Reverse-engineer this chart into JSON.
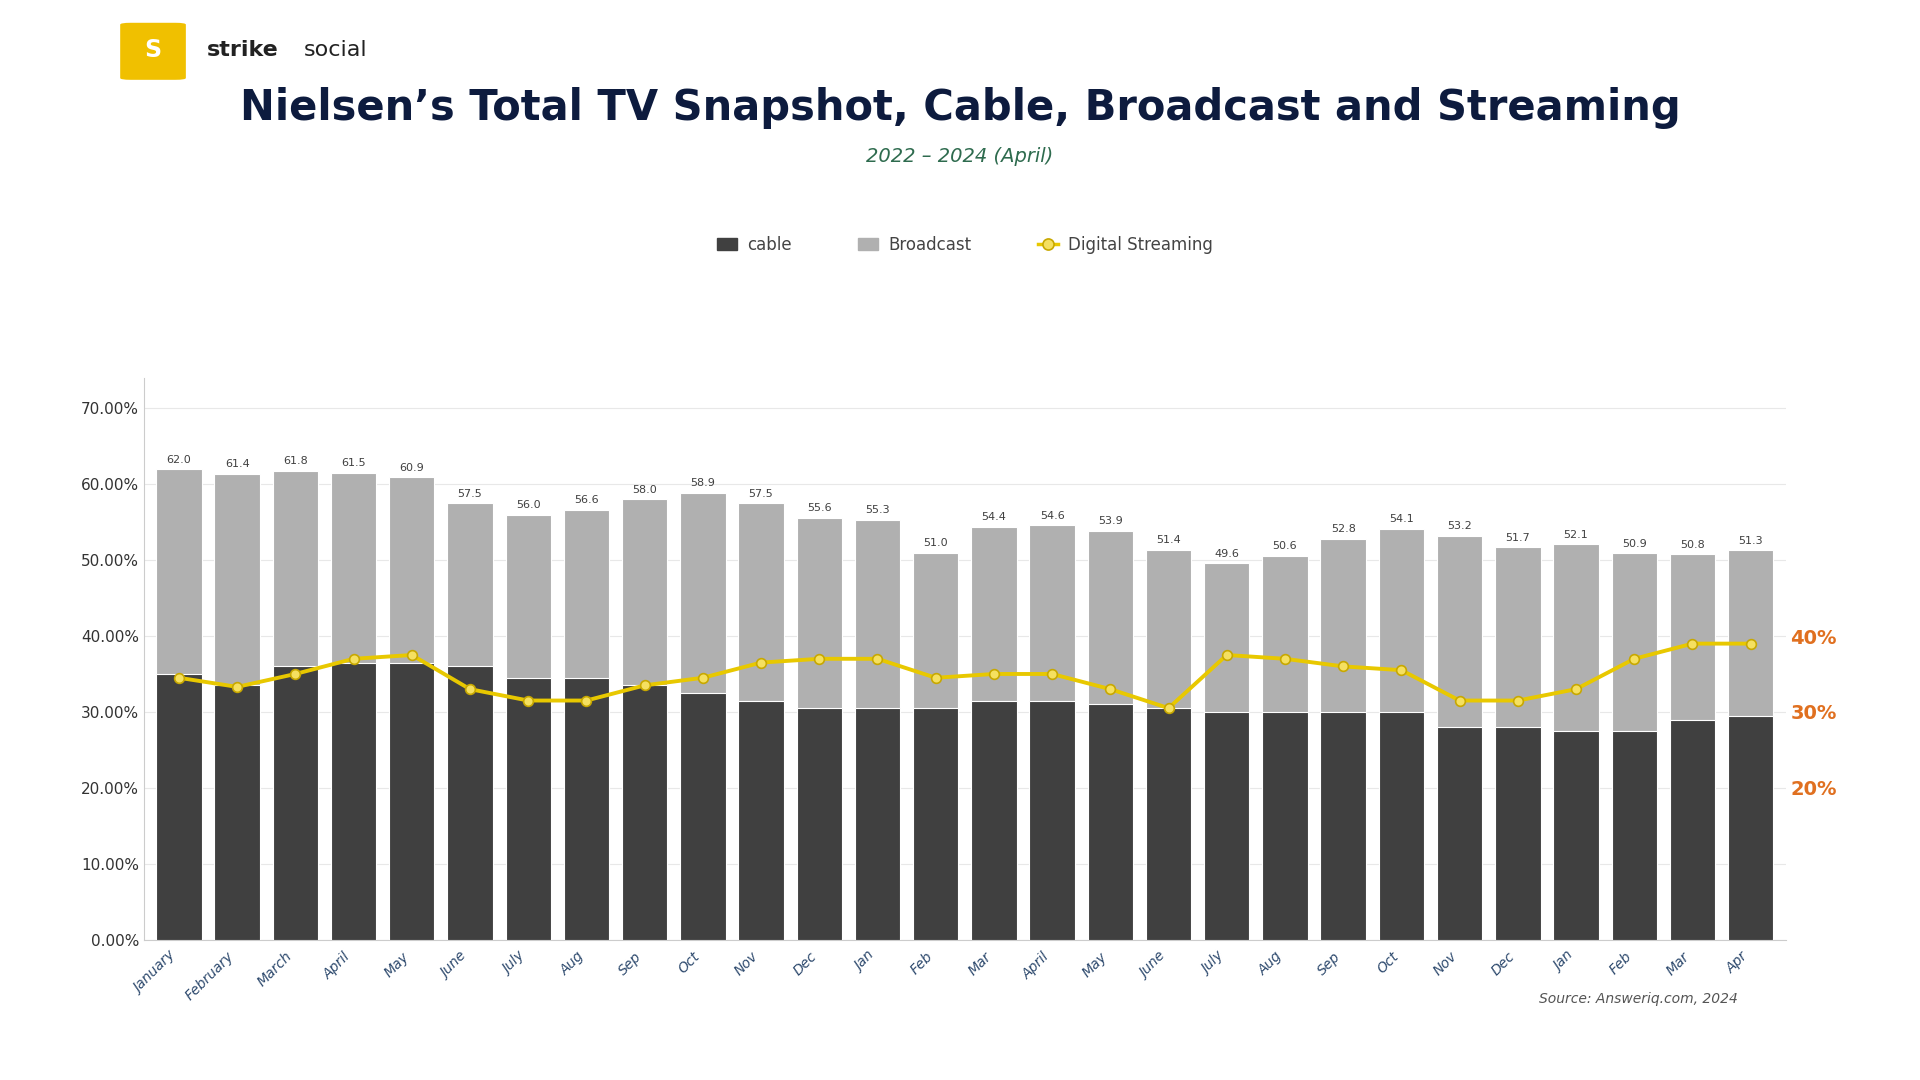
{
  "title": "Nielsen’s Total TV Snapshot, Cable, Broadcast and Streaming",
  "subtitle": "2022 – 2024 (April)",
  "source": "Source: Answeriq.com, 2024",
  "categories": [
    "January",
    "February",
    "March",
    "April",
    "May",
    "June",
    "July",
    "Aug",
    "Sep",
    "Oct",
    "Nov",
    "Dec",
    "Jan",
    "Feb",
    "Mar",
    "April",
    "May",
    "June",
    "July",
    "Aug",
    "Sep",
    "Oct",
    "Nov",
    "Dec",
    "Jan",
    "Feb",
    "Mar",
    "Apr"
  ],
  "cable_values": [
    35.0,
    33.5,
    36.0,
    36.5,
    36.5,
    36.0,
    34.5,
    34.5,
    33.5,
    32.5,
    31.5,
    30.5,
    30.5,
    30.5,
    31.5,
    31.5,
    31.0,
    30.5,
    30.0,
    30.0,
    30.0,
    30.0,
    28.0,
    28.0,
    27.5,
    27.5,
    29.0,
    29.5
  ],
  "broadcast_values": [
    62.0,
    61.4,
    61.8,
    61.5,
    60.9,
    57.5,
    56.0,
    56.6,
    58.0,
    58.9,
    57.5,
    55.6,
    55.3,
    51.0,
    54.4,
    54.6,
    53.9,
    51.4,
    49.6,
    50.6,
    52.8,
    54.1,
    53.2,
    51.7,
    52.1,
    50.9,
    50.8,
    51.3
  ],
  "streaming_values": [
    34.5,
    33.3,
    35.0,
    37.0,
    37.5,
    33.0,
    31.5,
    31.5,
    33.5,
    34.5,
    36.5,
    37.0,
    37.0,
    34.5,
    35.0,
    35.0,
    33.0,
    30.5,
    37.5,
    37.0,
    36.0,
    35.5,
    31.5,
    31.5,
    33.0,
    37.0,
    39.0,
    39.0
  ],
  "cable_color": "#404040",
  "broadcast_color": "#b0b0b0",
  "streaming_color": "#e8c800",
  "background_color": "#ffffff",
  "title_color": "#0d1b3e",
  "subtitle_color": "#2e6b4e",
  "right_axis_color": "#e07020",
  "bar_label_color": "#404040",
  "tick_label_color": "#2e4a6e",
  "source_color": "#555555",
  "logo_color": "#f0c000"
}
